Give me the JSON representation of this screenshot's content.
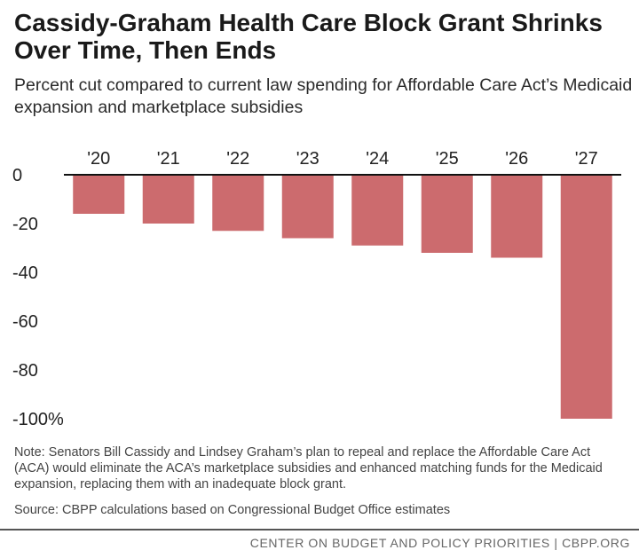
{
  "title": "Cassidy-Graham Health Care Block Grant Shrinks Over Time, Then Ends",
  "subtitle": "Percent cut compared to current law spending for Affordable Care Act’s Medicaid expansion and marketplace subsidies",
  "note": "Note: Senators Bill Cassidy and Lindsey Graham’s plan to repeal and replace the Affordable Care Act (ACA) would eliminate the ACA’s marketplace subsidies and enhanced matching funds for the Medicaid expansion, replacing them with an inadequate block grant.",
  "source": "Source: CBPP calculations based on Congressional Budget Office estimates",
  "footer": "CENTER ON BUDGET AND POLICY PRIORITIES | CBPP.ORG",
  "colors": {
    "bar": "#cc6b6e",
    "axis": "#111111"
  },
  "chart_data": {
    "type": "bar",
    "categories": [
      "'20",
      "'21",
      "'22",
      "'23",
      "'24",
      "'25",
      "'26",
      "'27"
    ],
    "values": [
      -16,
      -20,
      -23,
      -26,
      -29,
      -32,
      -34,
      -100
    ],
    "ylim": [
      -100,
      0
    ],
    "y_ticks": [
      0,
      -20,
      -40,
      -60,
      -80,
      -100
    ],
    "y_tick_labels": [
      "0",
      "-20",
      "-40",
      "-60",
      "-80",
      "-100%"
    ],
    "xlabel": "",
    "ylabel": "",
    "x_axis_position": "top",
    "grid": false,
    "legend": "none"
  }
}
